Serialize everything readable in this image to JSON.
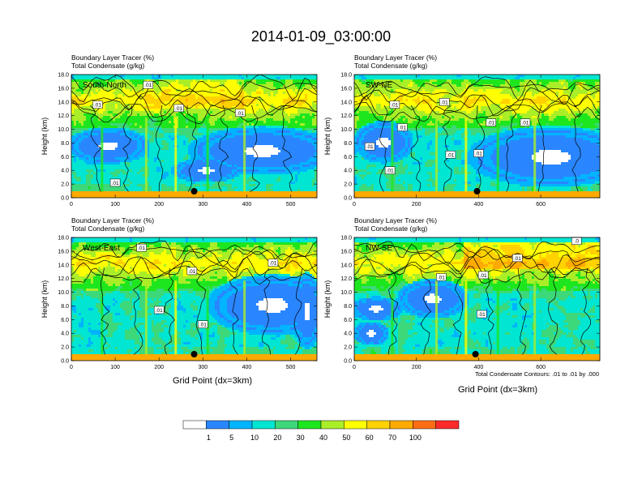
{
  "figure": {
    "title": "2014-01-09_03:00:00",
    "xlabel": "Grid Point (dx=3km)",
    "contour_note": "Total Condensate Contours: .01 to .01 by .000"
  },
  "colors": {
    "bins": [
      "#ffffff",
      "#2a86ff",
      "#00b4ff",
      "#00e6d2",
      "#3cd87a",
      "#1ee61e",
      "#aaee28",
      "#ffff00",
      "#ffd200",
      "#ffaa00",
      "#ff6e14",
      "#ff2a2a"
    ],
    "bin_labels": [
      "1",
      "5",
      "10",
      "20",
      "30",
      "40",
      "50",
      "60",
      "70",
      "100"
    ]
  },
  "chart_data": [
    {
      "type": "heatmap",
      "panel": "South-North",
      "title_line1": "Boundary Layer Tracer   (%)",
      "title_line2": "Total Condensate   (g/kg)",
      "ylabel": "Height (km)",
      "yticks": [
        "0.0",
        "2.0",
        "4.0",
        "6.0",
        "8.0",
        "10.0",
        "12.0",
        "14.0",
        "16.0",
        "18.0"
      ],
      "ylim": [
        0,
        18
      ],
      "xlim": [
        0,
        560
      ],
      "xticks": [
        "0",
        "100",
        "200",
        "300",
        "400",
        "500"
      ],
      "xticks_values": [
        0,
        100,
        200,
        300,
        400,
        500
      ],
      "marker_x": 280,
      "contour_labels": [
        {
          "x": 175,
          "y": 16.5,
          "label": ".01"
        },
        {
          "x": 60,
          "y": 13.6,
          "label": ".01"
        },
        {
          "x": 245,
          "y": 13.1,
          "label": ".01"
        },
        {
          "x": 385,
          "y": 12.4,
          "label": ".01"
        },
        {
          "x": 100,
          "y": 2.2,
          "label": ".01"
        }
      ]
    },
    {
      "type": "heatmap",
      "panel": "SW-NE",
      "title_line1": "Boundary Layer Tracer   (%)",
      "title_line2": "Total Condensate   (g/kg)",
      "ylabel": "Height (km)",
      "yticks": [
        "0.0",
        "2.0",
        "4.0",
        "6.0",
        "8.0",
        "10.0",
        "12.0",
        "14.0",
        "16.0",
        "18.0"
      ],
      "ylim": [
        0,
        18
      ],
      "xlim": [
        0,
        790
      ],
      "xticks": [
        "0",
        "200",
        "400",
        "600"
      ],
      "xticks_values": [
        0,
        200,
        400,
        600
      ],
      "marker_x": 395,
      "contour_labels": [
        {
          "x": 130,
          "y": 13.6,
          "label": ".01"
        },
        {
          "x": 290,
          "y": 14.0,
          "label": ".01"
        },
        {
          "x": 440,
          "y": 11.0,
          "label": ".01"
        },
        {
          "x": 550,
          "y": 11.0,
          "label": ".01"
        },
        {
          "x": 155,
          "y": 10.3,
          "label": ".01"
        },
        {
          "x": 400,
          "y": 6.5,
          "label": ".01"
        },
        {
          "x": 310,
          "y": 6.3,
          "label": ".01"
        },
        {
          "x": 50,
          "y": 7.5,
          "label": ".01"
        },
        {
          "x": 115,
          "y": 4.0,
          "label": ".01"
        }
      ]
    },
    {
      "type": "heatmap",
      "panel": "West-East",
      "title_line1": "Boundary Layer Tracer   (%)",
      "title_line2": "Total Condensate   (g/kg)",
      "ylabel": "Height (km)",
      "yticks": [
        "0.0",
        "2.0",
        "4.0",
        "6.0",
        "8.0",
        "10.0",
        "12.0",
        "14.0",
        "16.0",
        "18.0"
      ],
      "ylim": [
        0,
        18
      ],
      "xlim": [
        0,
        560
      ],
      "xticks": [
        "0",
        "100",
        "200",
        "300",
        "400",
        "500"
      ],
      "xticks_values": [
        0,
        100,
        200,
        300,
        400,
        500
      ],
      "marker_x": 280,
      "contour_labels": [
        {
          "x": 160,
          "y": 16.5,
          "label": ".01"
        },
        {
          "x": 460,
          "y": 14.3,
          "label": ".01"
        },
        {
          "x": 275,
          "y": 13.1,
          "label": ".01"
        },
        {
          "x": 200,
          "y": 7.4,
          "label": ".01"
        },
        {
          "x": 300,
          "y": 5.3,
          "label": ".01"
        }
      ]
    },
    {
      "type": "heatmap",
      "panel": "NW-SE",
      "title_line1": "Boundary Layer Tracer   (%)",
      "title_line2": "Total Condensate   (g/kg)",
      "ylabel": "Height (km)",
      "yticks": [
        "0.0",
        "2.0",
        "4.0",
        "6.0",
        "8.0",
        "10.0",
        "12.0",
        "14.0",
        "16.0",
        "18.0"
      ],
      "ylim": [
        0,
        18
      ],
      "xlim": [
        0,
        790
      ],
      "xticks": [
        "0",
        "200",
        "400",
        "600"
      ],
      "xticks_values": [
        0,
        200,
        400,
        600
      ],
      "marker_x": 390,
      "contour_labels": [
        {
          "x": 525,
          "y": 15.0,
          "label": ".01"
        },
        {
          "x": 280,
          "y": 12.2,
          "label": ".01"
        },
        {
          "x": 415,
          "y": 12.5,
          "label": ".01"
        },
        {
          "x": 410,
          "y": 6.8,
          "label": ".01"
        },
        {
          "x": 715,
          "y": 17.5,
          "label": ".0"
        }
      ]
    }
  ]
}
